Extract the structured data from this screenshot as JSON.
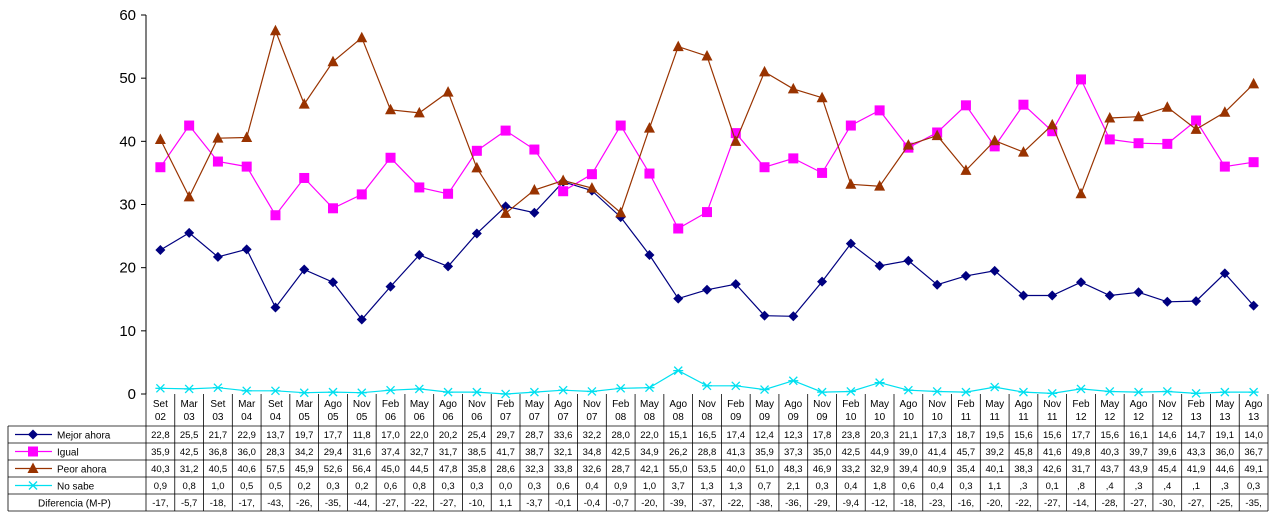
{
  "chart_data": {
    "type": "line",
    "title": "",
    "xlabel": "",
    "ylabel": "",
    "ylim": [
      0,
      60
    ],
    "yticks": [
      "0",
      "10",
      "20",
      "30",
      "40",
      "50",
      "60"
    ],
    "grid": false,
    "legend": "data-table-bottom",
    "categories": [
      [
        "Set",
        "02"
      ],
      [
        "Mar",
        "03"
      ],
      [
        "Set",
        "03"
      ],
      [
        "Mar",
        "04"
      ],
      [
        "Set",
        "04"
      ],
      [
        "Mar",
        "05"
      ],
      [
        "Ago",
        "05"
      ],
      [
        "Nov",
        "05"
      ],
      [
        "Feb",
        "06"
      ],
      [
        "May",
        "06"
      ],
      [
        "Ago",
        "06"
      ],
      [
        "Nov",
        "06"
      ],
      [
        "Feb",
        "07"
      ],
      [
        "May",
        "07"
      ],
      [
        "Ago",
        "07"
      ],
      [
        "Nov",
        "07"
      ],
      [
        "Feb",
        "08"
      ],
      [
        "May",
        "08"
      ],
      [
        "Ago",
        "08"
      ],
      [
        "Nov",
        "08"
      ],
      [
        "Feb",
        "09"
      ],
      [
        "May",
        "09"
      ],
      [
        "Ago",
        "09"
      ],
      [
        "Nov",
        "09"
      ],
      [
        "Feb",
        "10"
      ],
      [
        "May",
        "10"
      ],
      [
        "Ago",
        "10"
      ],
      [
        "Nov",
        "10"
      ],
      [
        "Feb",
        "11"
      ],
      [
        "May",
        "11"
      ],
      [
        "Ago",
        "11"
      ],
      [
        "Nov",
        "11"
      ],
      [
        "Feb",
        "12"
      ],
      [
        "May",
        "12"
      ],
      [
        "Ago",
        "12"
      ],
      [
        "Nov",
        "12"
      ],
      [
        "Feb",
        "13"
      ],
      [
        "May",
        "13"
      ],
      [
        "Ago",
        "13"
      ]
    ],
    "series": [
      {
        "name": "Mejor ahora",
        "color": "#000080",
        "marker": "diamond",
        "values": [
          22.8,
          25.5,
          21.7,
          22.9,
          13.7,
          19.7,
          17.7,
          11.8,
          17.0,
          22.0,
          20.2,
          25.4,
          29.7,
          28.7,
          33.6,
          32.2,
          28.0,
          22.0,
          15.1,
          16.5,
          17.4,
          12.4,
          12.3,
          17.8,
          23.8,
          20.3,
          21.1,
          17.3,
          18.7,
          19.5,
          15.6,
          15.6,
          17.7,
          15.6,
          16.1,
          14.6,
          14.7,
          19.1,
          14.0
        ],
        "labels": [
          "22,8",
          "25,5",
          "21,7",
          "22,9",
          "13,7",
          "19,7",
          "17,7",
          "11,8",
          "17,0",
          "22,0",
          "20,2",
          "25,4",
          "29,7",
          "28,7",
          "33,6",
          "32,2",
          "28,0",
          "22,0",
          "15,1",
          "16,5",
          "17,4",
          "12,4",
          "12,3",
          "17,8",
          "23,8",
          "20,3",
          "21,1",
          "17,3",
          "18,7",
          "19,5",
          "15,6",
          "15,6",
          "17,7",
          "15,6",
          "16,1",
          "14,6",
          "14,7",
          "19,1",
          "14,0"
        ]
      },
      {
        "name": "Igual",
        "color": "#ff00ff",
        "marker": "square",
        "values": [
          35.9,
          42.5,
          36.8,
          36.0,
          28.3,
          34.2,
          29.4,
          31.6,
          37.4,
          32.7,
          31.7,
          38.5,
          41.7,
          38.7,
          32.1,
          34.8,
          42.5,
          34.9,
          26.2,
          28.8,
          41.3,
          35.9,
          37.3,
          35.0,
          42.5,
          44.9,
          39.0,
          41.4,
          45.7,
          39.2,
          45.8,
          41.6,
          49.8,
          40.3,
          39.7,
          39.6,
          43.3,
          36.0,
          36.7
        ],
        "labels": [
          "35,9",
          "42,5",
          "36,8",
          "36,0",
          "28,3",
          "34,2",
          "29,4",
          "31,6",
          "37,4",
          "32,7",
          "31,7",
          "38,5",
          "41,7",
          "38,7",
          "32,1",
          "34,8",
          "42,5",
          "34,9",
          "26,2",
          "28,8",
          "41,3",
          "35,9",
          "37,3",
          "35,0",
          "42,5",
          "44,9",
          "39,0",
          "41,4",
          "45,7",
          "39,2",
          "45,8",
          "41,6",
          "49,8",
          "40,3",
          "39,7",
          "39,6",
          "43,3",
          "36,0",
          "36,7"
        ]
      },
      {
        "name": "Peor ahora",
        "color": "#993300",
        "marker": "triangle",
        "values": [
          40.3,
          31.2,
          40.5,
          40.6,
          57.5,
          45.9,
          52.6,
          56.4,
          45.0,
          44.5,
          47.8,
          35.8,
          28.6,
          32.3,
          33.8,
          32.6,
          28.7,
          42.1,
          55.0,
          53.5,
          40.0,
          51.0,
          48.3,
          46.9,
          33.2,
          32.9,
          39.4,
          40.9,
          35.4,
          40.1,
          38.3,
          42.6,
          31.7,
          43.7,
          43.9,
          45.4,
          41.9,
          44.6,
          49.1
        ],
        "labels": [
          "40,3",
          "31,2",
          "40,5",
          "40,6",
          "57,5",
          "45,9",
          "52,6",
          "56,4",
          "45,0",
          "44,5",
          "47,8",
          "35,8",
          "28,6",
          "32,3",
          "33,8",
          "32,6",
          "28,7",
          "42,1",
          "55,0",
          "53,5",
          "40,0",
          "51,0",
          "48,3",
          "46,9",
          "33,2",
          "32,9",
          "39,4",
          "40,9",
          "35,4",
          "40,1",
          "38,3",
          "42,6",
          "31,7",
          "43,7",
          "43,9",
          "45,4",
          "41,9",
          "44,6",
          "49,1"
        ]
      },
      {
        "name": "No sabe",
        "color": "#00e0f0",
        "marker": "x",
        "values": [
          0.9,
          0.8,
          1.0,
          0.5,
          0.5,
          0.2,
          0.3,
          0.2,
          0.6,
          0.8,
          0.3,
          0.3,
          0.0,
          0.3,
          0.6,
          0.4,
          0.9,
          1.0,
          3.7,
          1.3,
          1.3,
          0.7,
          2.1,
          0.3,
          0.4,
          1.8,
          0.6,
          0.4,
          0.3,
          1.1,
          0.3,
          0.1,
          0.8,
          0.4,
          0.3,
          0.4,
          0.1,
          0.3,
          0.3
        ],
        "labels": [
          "0,9",
          "0,8",
          "1,0",
          "0,5",
          "0,5",
          "0,2",
          "0,3",
          "0,2",
          "0,6",
          "0,8",
          "0,3",
          "0,3",
          "0,0",
          "0,3",
          "0,6",
          "0,4",
          "0,9",
          "1,0",
          "3,7",
          "1,3",
          "1,3",
          "0,7",
          "2,1",
          "0,3",
          "0,4",
          "1,8",
          "0,6",
          "0,4",
          "0,3",
          "1,1",
          ",3",
          "0,1",
          ",8",
          ",4",
          ",3",
          ",4",
          ",1",
          ",3",
          "0,3"
        ]
      }
    ],
    "extra_rows": [
      {
        "name": "Diferencia (M-P)",
        "labels": [
          "-17,",
          "-5,7",
          "-18,",
          "-17,",
          "-43,",
          "-26,",
          "-35,",
          "-44,",
          "-27,",
          "-22,",
          "-27,",
          "-10,",
          "1,1",
          "-3,7",
          "-0,1",
          "-0,4",
          "-0,7",
          "-20,",
          "-39,",
          "-37,",
          "-22,",
          "-38,",
          "-36,",
          "-29,",
          "-9,4",
          "-12,",
          "-18,",
          "-23,",
          "-16,",
          "-20,",
          "-22,",
          "-27,",
          "-14,",
          "-28,",
          "-27,",
          "-30,",
          "-27,",
          "-25,",
          "-35,"
        ]
      }
    ]
  }
}
